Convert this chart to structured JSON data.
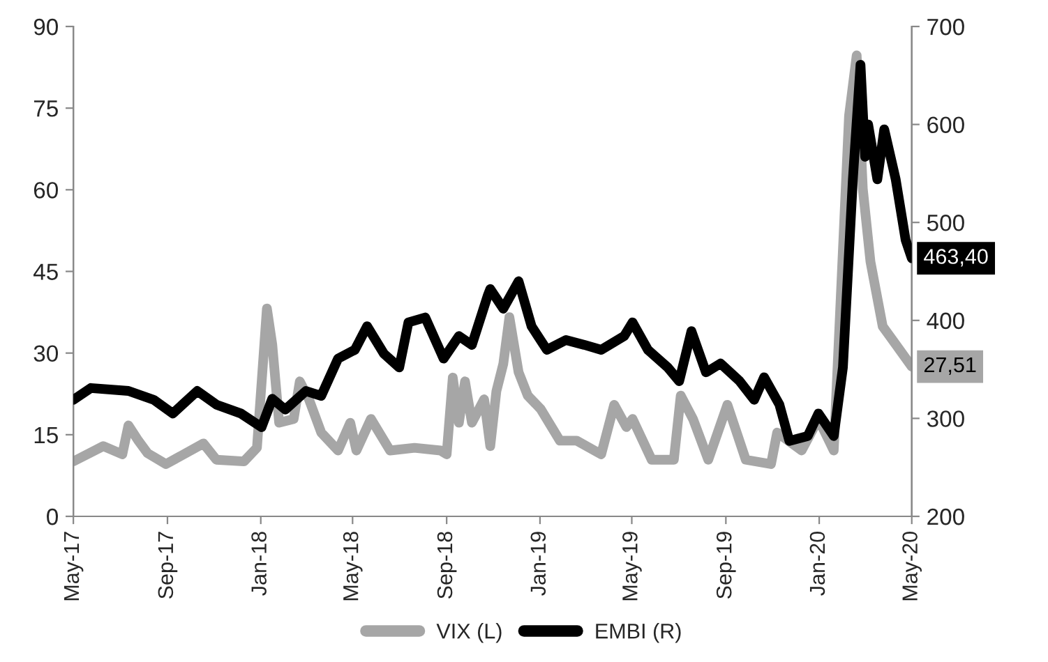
{
  "chart_data": {
    "type": "line",
    "xlim": [
      "2017-05-01",
      "2020-05-01"
    ],
    "xticks": [
      {
        "value": "2017-05-01",
        "label": "May-17"
      },
      {
        "value": "2017-09-01",
        "label": "Sep-17"
      },
      {
        "value": "2018-01-01",
        "label": "Jan-18"
      },
      {
        "value": "2018-05-01",
        "label": "May-18"
      },
      {
        "value": "2018-09-01",
        "label": "Sep-18"
      },
      {
        "value": "2019-01-01",
        "label": "Jan-19"
      },
      {
        "value": "2019-05-01",
        "label": "May-19"
      },
      {
        "value": "2019-09-01",
        "label": "Sep-19"
      },
      {
        "value": "2020-01-01",
        "label": "Jan-20"
      },
      {
        "value": "2020-05-01",
        "label": "May-20"
      }
    ],
    "ylim": [
      0,
      90
    ],
    "yticks": [
      0,
      15,
      30,
      45,
      60,
      75,
      90
    ],
    "y2lim": [
      200,
      700
    ],
    "y2ticks": [
      200,
      300,
      400,
      500,
      600,
      700
    ],
    "grid": false,
    "legend": "bottom",
    "marker": "none",
    "line_style": "solid",
    "series": [
      {
        "name": "VIX (L)",
        "color": "#a6a6a6",
        "axis": "y",
        "x": [
          "2017-05-01",
          "2017-06-09",
          "2017-07-04",
          "2017-07-12",
          "2017-07-25",
          "2017-08-06",
          "2017-08-30",
          "2017-10-18",
          "2017-11-04",
          "2017-12-10",
          "2017-12-27",
          "2018-01-09",
          "2018-01-16",
          "2018-01-25",
          "2018-02-13",
          "2018-02-21",
          "2018-03-05",
          "2018-03-21",
          "2018-04-12",
          "2018-04-28",
          "2018-05-06",
          "2018-05-25",
          "2018-06-19",
          "2018-07-21",
          "2018-08-24",
          "2018-09-01",
          "2018-09-09",
          "2018-09-17",
          "2018-09-25",
          "2018-10-04",
          "2018-10-20",
          "2018-10-28",
          "2018-11-05",
          "2018-11-14",
          "2018-11-22",
          "2018-12-04",
          "2018-12-16",
          "2019-01-02",
          "2019-01-27",
          "2019-02-18",
          "2019-03-22",
          "2019-04-08",
          "2019-04-24",
          "2019-05-02",
          "2019-05-27",
          "2019-06-25",
          "2019-07-04",
          "2019-07-20",
          "2019-08-09",
          "2019-09-03",
          "2019-09-27",
          "2019-10-30",
          "2019-11-07",
          "2019-12-09",
          "2019-12-31",
          "2020-01-20",
          "2020-01-28",
          "2020-02-09",
          "2020-02-19",
          "2020-02-27",
          "2020-03-08",
          "2020-03-24",
          "2020-04-10",
          "2020-05-01"
        ],
        "values": [
          10.1,
          12.9,
          11.4,
          16.7,
          13.9,
          11.6,
          9.6,
          13.4,
          10.4,
          10.1,
          12.6,
          38.2,
          31.6,
          17.2,
          17.9,
          24.8,
          21.5,
          15.4,
          12.1,
          17.2,
          12.1,
          17.9,
          12.1,
          12.6,
          12.1,
          11.4,
          25.5,
          17.2,
          24.8,
          17.2,
          21.5,
          12.9,
          23,
          28,
          36.6,
          26.5,
          22.2,
          19.7,
          13.9,
          13.9,
          11.4,
          20.5,
          16.4,
          17.9,
          10.4,
          10.4,
          22.2,
          17.9,
          10.4,
          20.5,
          10.4,
          9.6,
          15.4,
          12.1,
          17.9,
          12.1,
          36.6,
          73.6,
          84.7,
          60.2,
          46.8,
          34.9,
          31.6,
          27.51
        ],
        "value_labels": [
          null,
          null,
          null,
          null,
          null,
          null,
          null,
          null,
          null,
          null,
          null,
          null,
          null,
          null,
          null,
          null,
          null,
          null,
          null,
          null,
          null,
          null,
          null,
          null,
          null,
          null,
          null,
          null,
          null,
          null,
          null,
          null,
          null,
          null,
          null,
          null,
          null,
          null,
          null,
          null,
          null,
          null,
          null,
          null,
          null,
          null,
          null,
          null,
          null,
          null,
          null,
          null,
          null,
          null,
          null,
          null,
          null,
          null,
          null,
          null,
          null,
          null,
          null,
          "27,51"
        ]
      },
      {
        "name": "EMBI (R)",
        "color": "#000000",
        "axis": "y2",
        "x": [
          "2017-05-01",
          "2017-05-24",
          "2017-07-12",
          "2017-08-14",
          "2017-09-08",
          "2017-10-10",
          "2017-11-04",
          "2017-12-06",
          "2018-01-02",
          "2018-01-16",
          "2018-02-02",
          "2018-03-01",
          "2018-03-21",
          "2018-04-12",
          "2018-05-04",
          "2018-05-20",
          "2018-06-11",
          "2018-07-01",
          "2018-07-13",
          "2018-08-04",
          "2018-08-28",
          "2018-09-17",
          "2018-10-04",
          "2018-10-25",
          "2018-10-28",
          "2018-11-14",
          "2018-12-04",
          "2018-12-21",
          "2019-01-10",
          "2019-02-04",
          "2019-02-28",
          "2019-03-22",
          "2019-04-21",
          "2019-05-02",
          "2019-05-22",
          "2019-06-17",
          "2019-07-02",
          "2019-07-18",
          "2019-08-06",
          "2019-08-25",
          "2019-09-19",
          "2019-10-08",
          "2019-10-21",
          "2019-11-10",
          "2019-11-23",
          "2019-12-17",
          "2019-12-31",
          "2020-01-20",
          "2020-02-01",
          "2020-02-14",
          "2020-02-24",
          "2020-03-01",
          "2020-03-05",
          "2020-03-17",
          "2020-03-26",
          "2020-04-10",
          "2020-04-23",
          "2020-05-01"
        ],
        "values": [
          319,
          331,
          328,
          319,
          305,
          328,
          314,
          305,
          291,
          320,
          309,
          328,
          323,
          361,
          370,
          394,
          366,
          352,
          398,
          403,
          361,
          384,
          375,
          426,
          432,
          412,
          440,
          394,
          370,
          380,
          375,
          370,
          384,
          398,
          370,
          352,
          338,
          389,
          347,
          356,
          338,
          319,
          342,
          314,
          277,
          282,
          305,
          282,
          352,
          544,
          661,
          567,
          600,
          544,
          595,
          544,
          482,
          463.4
        ],
        "value_labels": [
          null,
          null,
          null,
          null,
          null,
          null,
          null,
          null,
          null,
          null,
          null,
          null,
          null,
          null,
          null,
          null,
          null,
          null,
          null,
          null,
          null,
          null,
          null,
          null,
          null,
          null,
          null,
          null,
          null,
          null,
          null,
          null,
          null,
          null,
          null,
          null,
          null,
          null,
          null,
          null,
          null,
          null,
          null,
          null,
          null,
          null,
          null,
          null,
          null,
          null,
          null,
          null,
          null,
          null,
          null,
          null,
          null,
          "463,40"
        ]
      }
    ]
  }
}
